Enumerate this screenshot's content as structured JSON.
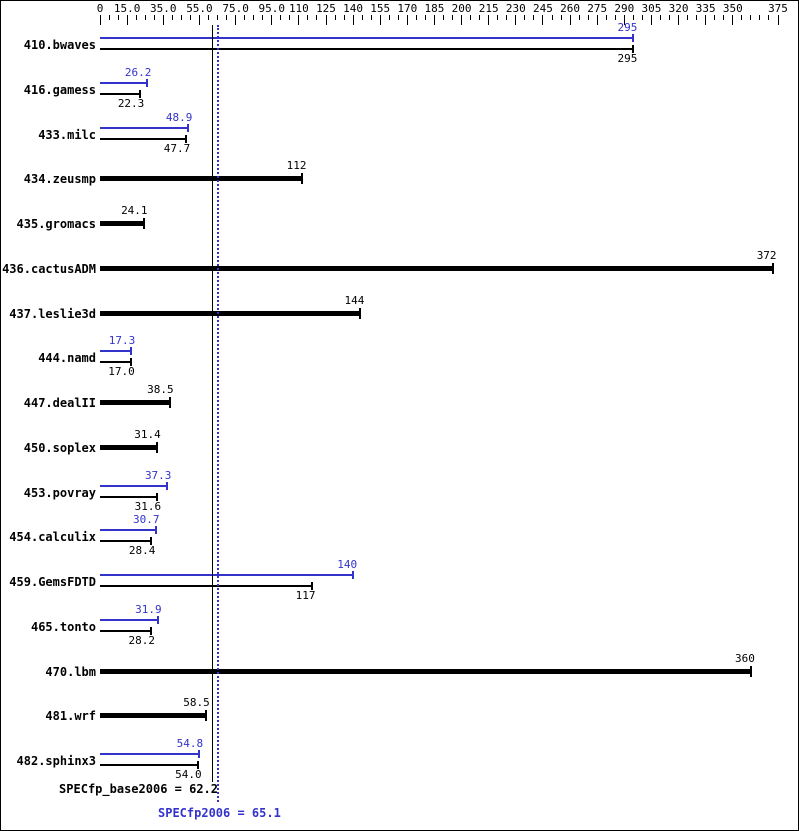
{
  "chart_data": {
    "type": "bar",
    "orientation": "horizontal",
    "title": "",
    "legend": "none",
    "colors": {
      "base": "#000000",
      "peak": "#3333cc"
    },
    "axis": {
      "position": "top",
      "min": 0,
      "plot_max": 375,
      "minor_tick_step": 5,
      "major_ticks": [
        0,
        15,
        35,
        55,
        75,
        95,
        110,
        125,
        140,
        155,
        170,
        185,
        200,
        215,
        230,
        245,
        260,
        275,
        290,
        305,
        320,
        335,
        350,
        375
      ],
      "tick_labels": [
        "0",
        "15.0",
        "35.0",
        "55.0",
        "75.0",
        "95.0",
        "110",
        "125",
        "140",
        "155",
        "170",
        "185",
        "200",
        "215",
        "230",
        "245",
        "260",
        "275",
        "290",
        "305",
        "320",
        "335",
        "350",
        "375"
      ]
    },
    "benchmarks": [
      {
        "name": "410.bwaves",
        "peak": 295,
        "peak_text": "295",
        "base": 295,
        "base_text": "295"
      },
      {
        "name": "416.gamess",
        "peak": 26.2,
        "peak_text": "26.2",
        "base": 22.3,
        "base_text": "22.3"
      },
      {
        "name": "433.milc",
        "peak": 48.9,
        "peak_text": "48.9",
        "base": 47.7,
        "base_text": "47.7"
      },
      {
        "name": "434.zeusmp",
        "base": 112,
        "base_text": "112"
      },
      {
        "name": "435.gromacs",
        "base": 24.1,
        "base_text": "24.1"
      },
      {
        "name": "436.cactusADM",
        "base": 372,
        "base_text": "372"
      },
      {
        "name": "437.leslie3d",
        "base": 144,
        "base_text": "144"
      },
      {
        "name": "444.namd",
        "peak": 17.3,
        "peak_text": "17.3",
        "base": 17.0,
        "base_text": "17.0"
      },
      {
        "name": "447.dealII",
        "base": 38.5,
        "base_text": "38.5"
      },
      {
        "name": "450.soplex",
        "base": 31.4,
        "base_text": "31.4"
      },
      {
        "name": "453.povray",
        "peak": 37.3,
        "peak_text": "37.3",
        "base": 31.6,
        "base_text": "31.6"
      },
      {
        "name": "454.calculix",
        "peak": 30.7,
        "peak_text": "30.7",
        "base": 28.4,
        "base_text": "28.4"
      },
      {
        "name": "459.GemsFDTD",
        "peak": 140,
        "peak_text": "140",
        "base": 117,
        "base_text": "117"
      },
      {
        "name": "465.tonto",
        "peak": 31.9,
        "peak_text": "31.9",
        "base": 28.2,
        "base_text": "28.2"
      },
      {
        "name": "470.lbm",
        "base": 360,
        "base_text": "360"
      },
      {
        "name": "481.wrf",
        "base": 58.5,
        "base_text": "58.5"
      },
      {
        "name": "482.sphinx3",
        "peak": 54.8,
        "peak_text": "54.8",
        "base": 54.0,
        "base_text": "54.0"
      }
    ],
    "summary": {
      "base_label": "SPECfp_base2006 = 62.2",
      "base_value": 62.2,
      "peak_label": "SPECfp2006 = 65.1",
      "peak_value": 65.1
    }
  }
}
